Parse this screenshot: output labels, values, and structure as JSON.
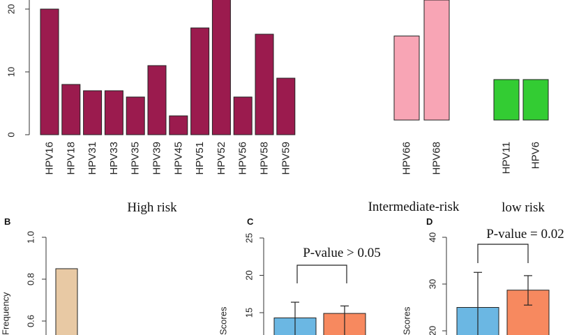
{
  "chart_data": [
    {
      "id": "A",
      "type": "bar",
      "ylim": [
        0,
        22
      ],
      "yticks": [
        0,
        10,
        20
      ],
      "groups": [
        {
          "label": "High risk",
          "color": "#9b1b4e",
          "categories": [
            "HPV16",
            "HPV18",
            "HPV31",
            "HPV33",
            "HPV35",
            "HPV39",
            "HPV45",
            "HPV51",
            "HPV52",
            "HPV56",
            "HPV58",
            "HPV59"
          ],
          "values": [
            20,
            8,
            7,
            7,
            6,
            11,
            3,
            17,
            22,
            6,
            16,
            9
          ]
        },
        {
          "label": "Intermediate-risk",
          "color": "#f8a5b5",
          "categories": [
            "HPV66",
            "HPV68"
          ],
          "values": [
            14,
            20
          ]
        },
        {
          "label": "low risk",
          "color": "#33cc33",
          "categories": [
            "HPV11",
            "HPV6"
          ],
          "values": [
            6.5,
            6.5
          ]
        }
      ]
    },
    {
      "id": "B",
      "panel_label": "B",
      "type": "bar",
      "ylabel": "Frequency",
      "ylim": [
        0,
        1.0
      ],
      "yticks": [
        "1.0",
        "0.8",
        "0.6"
      ],
      "color": "#e8c9a4",
      "values": [
        0.85
      ]
    },
    {
      "id": "C",
      "panel_label": "C",
      "type": "bar",
      "ylabel": "Scores",
      "ylim": [
        10,
        25
      ],
      "yticks": [
        15,
        20,
        25
      ],
      "annotation": "P-value > 0.05",
      "colors": [
        "#6bb7e3",
        "#f7895f"
      ],
      "values": [
        14.3,
        14.9
      ],
      "err_upper": [
        16.4,
        15.9
      ]
    },
    {
      "id": "D",
      "panel_label": "D",
      "type": "bar",
      "ylabel": "Scores",
      "ylim": [
        10,
        40
      ],
      "yticks": [
        20,
        30,
        40
      ],
      "annotation": "P-value = 0.02",
      "colors": [
        "#6bb7e3",
        "#f7895f"
      ],
      "values": [
        25,
        28.7
      ],
      "err_upper": [
        32.5,
        31.8
      ],
      "err_lower": [
        17.5,
        25.5
      ]
    }
  ]
}
